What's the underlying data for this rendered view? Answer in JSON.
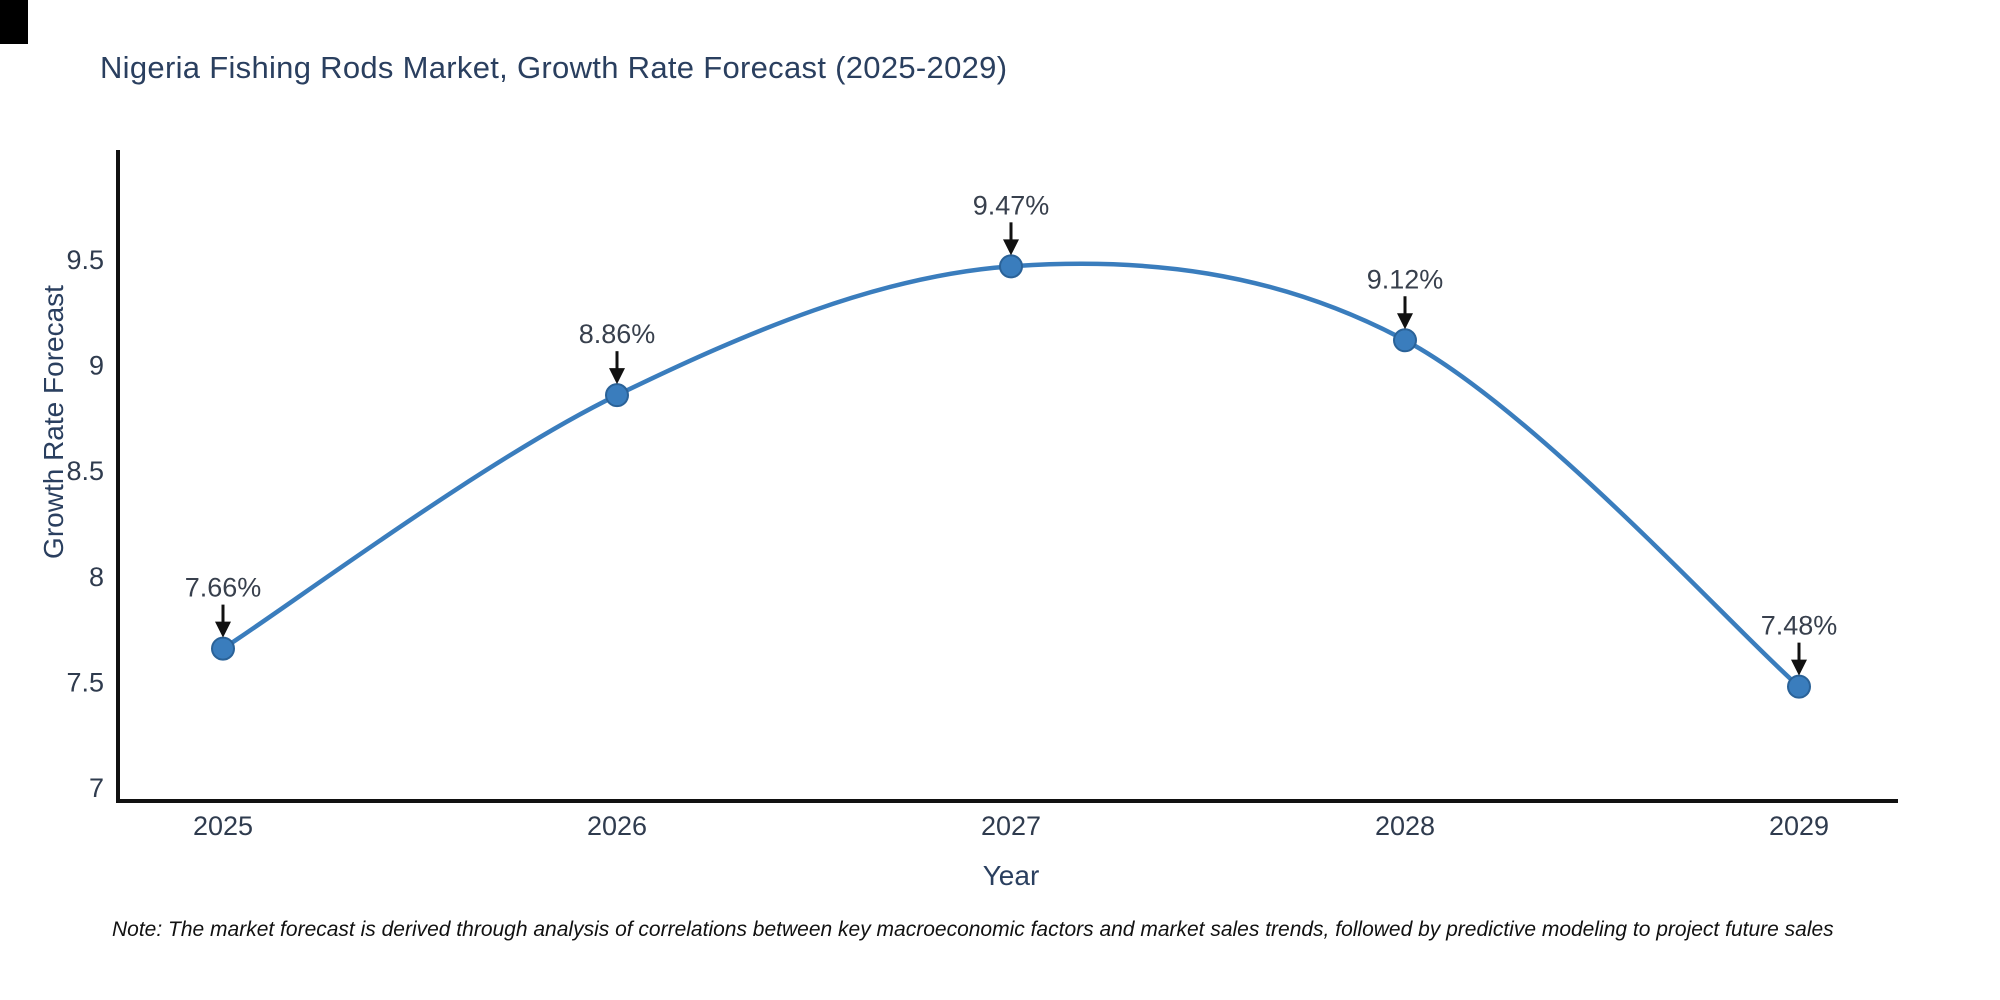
{
  "title": "Nigeria Fishing Rods Market, Growth Rate Forecast (2025-2029)",
  "note": "Note: The market forecast is derived through analysis of correlations between key macroeconomic factors and market sales trends, followed by predictive modeling to project future sales",
  "chart_data": {
    "type": "line",
    "title": "Nigeria Fishing Rods Market, Growth Rate Forecast (2025-2029)",
    "xlabel": "Year",
    "ylabel": "Growth Rate Forecast",
    "x": [
      2025,
      2026,
      2027,
      2028,
      2029
    ],
    "y": [
      7.66,
      8.86,
      9.47,
      9.12,
      7.48
    ],
    "point_labels": [
      "7.66%",
      "8.86%",
      "9.47%",
      "9.12%",
      "7.48%"
    ],
    "xtick_labels": [
      "2025",
      "2026",
      "2027",
      "2028",
      "2029"
    ],
    "ytick_values": [
      7,
      7.5,
      8,
      8.5,
      9,
      9.5
    ],
    "ytick_labels": [
      "7",
      "7.5",
      "8",
      "8.5",
      "9",
      "9.5"
    ],
    "ylim": [
      6.94,
      10.01
    ],
    "grid": false,
    "legend": false,
    "line_shape": "spline",
    "annotations_have_arrows": true,
    "colors": {
      "line": "#3a7dbd",
      "marker_fill": "#3a7dbd",
      "marker_edge": "#2a6298",
      "axis_line": "#111111",
      "arrow": "#111111",
      "title_text": "#2a3f5f",
      "tick_text": "#2f3b4e",
      "annotation_text": "#38404d",
      "note_text": "#111111",
      "background": "#ffffff"
    }
  }
}
